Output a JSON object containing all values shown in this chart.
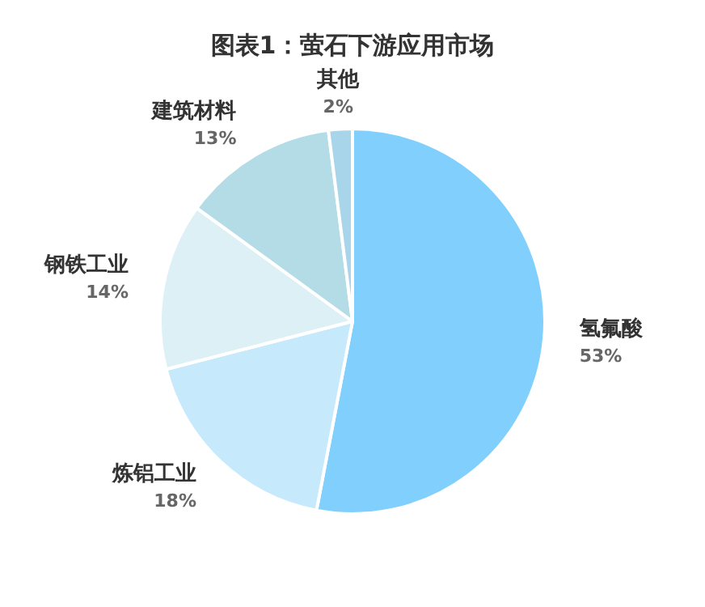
{
  "chart_data": {
    "type": "pie",
    "title": "图表1：萤石下游应用市场",
    "categories": [
      "氢氟酸",
      "炼铝工业",
      "钢铁工业",
      "建筑材料",
      "其他"
    ],
    "values": [
      53,
      18,
      14,
      13,
      2
    ],
    "colors": [
      "#80cffc",
      "#c6e9fb",
      "#dcf0f6",
      "#b3dce7",
      "#a8d5ea"
    ],
    "value_labels": [
      "53%",
      "18%",
      "14%",
      "13%",
      "2%"
    ],
    "legend": false
  }
}
